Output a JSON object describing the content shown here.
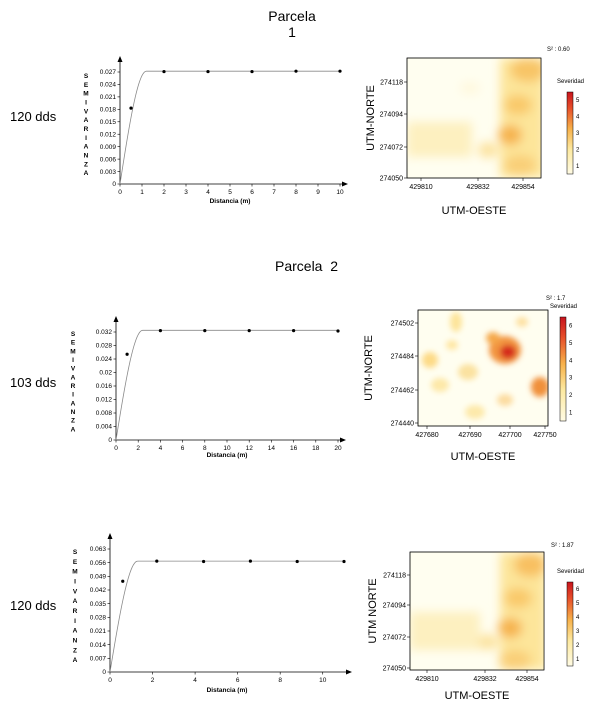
{
  "headings": {
    "parcela1_line1": "Parcela",
    "parcela1_line2": "1",
    "parcela2": "Parcela  2"
  },
  "rows": [
    {
      "dds_label": "120 dds",
      "s2_label": "S² : 0.60",
      "legend_title": "Severidad",
      "legend_ticks": [
        "1",
        "2",
        "3",
        "4",
        "5"
      ],
      "map_ylabel": "UTM-NORTE",
      "map_xlabel": "UTM-OESTE",
      "map_yticks": [
        "274118",
        "274094",
        "274072",
        "274050"
      ],
      "map_xticks": [
        "429810",
        "429832",
        "429854"
      ]
    },
    {
      "dds_label": "103 dds",
      "s2_label": "S² : 1.7",
      "legend_title": "Severidad",
      "legend_ticks": [
        "1",
        "2",
        "3",
        "4",
        "5",
        "6"
      ],
      "map_ylabel": "UTM-NORTE",
      "map_xlabel": "UTM-OESTE",
      "map_yticks": [
        "274502",
        "274484",
        "274462",
        "274440"
      ],
      "map_xticks": [
        "427680",
        "427690",
        "427700",
        "427750"
      ]
    },
    {
      "dds_label": "120 dds",
      "s2_label": "S² : 1.87",
      "legend_title": "Severidad",
      "legend_ticks": [
        "1",
        "2",
        "3",
        "4",
        "5",
        "6"
      ],
      "map_ylabel": "UTM NORTE",
      "map_xlabel": "UTM-OESTE",
      "map_yticks": [
        "274118",
        "274094",
        "274072",
        "274050"
      ],
      "map_xticks": [
        "429810",
        "429832",
        "429854"
      ]
    }
  ],
  "chart_data": [
    {
      "type": "scatter",
      "title": "",
      "xlabel": "Distancia (m)",
      "ylabel": "SEMIVARIANZA",
      "xlim": [
        0,
        10
      ],
      "ylim": [
        0,
        0.027
      ],
      "xticks": [
        0,
        1,
        2,
        3,
        4,
        5,
        6,
        7,
        8,
        9,
        10
      ],
      "yticks": [
        0,
        0.003,
        0.006,
        0.009,
        0.012,
        0.015,
        0.018,
        0.021,
        0.024,
        0.027
      ],
      "ytick_labels": [
        "0",
        "0.003",
        "0.006",
        "0.009",
        "0.012",
        "0.015",
        "0.018",
        "0.021",
        "0.024",
        "0.027"
      ],
      "points": [
        [
          0.5,
          0.0183
        ],
        [
          2,
          0.0271
        ],
        [
          4,
          0.0271
        ],
        [
          6,
          0.0271
        ],
        [
          8,
          0.0272
        ],
        [
          10,
          0.0272
        ]
      ],
      "model": {
        "type": "spherical",
        "nugget": 0,
        "sill": 0.0272,
        "range": 1.2
      },
      "grid": false
    },
    {
      "type": "scatter",
      "title": "",
      "xlabel": "Distancia (m)",
      "ylabel": "SEMIVARIANZA",
      "xlim": [
        0,
        20
      ],
      "ylim": [
        0,
        0.032
      ],
      "xticks": [
        0,
        2,
        4,
        6,
        8,
        10,
        12,
        14,
        16,
        18,
        20
      ],
      "yticks": [
        0,
        0.004,
        0.008,
        0.012,
        0.016,
        0.02,
        0.024,
        0.028,
        0.032
      ],
      "ytick_labels": [
        "0",
        "0.004",
        "0.008",
        "0.012",
        "0.016",
        "0.02",
        "0.024",
        "0.028",
        "0.032"
      ],
      "points": [
        [
          1,
          0.0254
        ],
        [
          4,
          0.0324
        ],
        [
          8,
          0.0324
        ],
        [
          12,
          0.0324
        ],
        [
          16,
          0.0324
        ],
        [
          20,
          0.0323
        ]
      ],
      "model": {
        "type": "spherical",
        "nugget": 0,
        "sill": 0.0325,
        "range": 2.4
      },
      "grid": false
    },
    {
      "type": "scatter",
      "title": "",
      "xlabel": "Distancia (m)",
      "ylabel": "SEMIVARIANZA",
      "xlim": [
        0,
        11
      ],
      "ylim": [
        0,
        0.063
      ],
      "xticks": [
        0,
        2,
        4,
        6,
        8,
        10
      ],
      "yticks": [
        0,
        0.007,
        0.014,
        0.021,
        0.028,
        0.035,
        0.042,
        0.049,
        0.056,
        0.063
      ],
      "ytick_labels": [
        "0",
        "0.007",
        "0.014",
        "0.021",
        "0.028",
        "0.035",
        "0.042",
        "0.049",
        "0.056",
        "0.063"
      ],
      "points": [
        [
          0.6,
          0.0465
        ],
        [
          2.2,
          0.0568
        ],
        [
          4.4,
          0.0566
        ],
        [
          6.6,
          0.0568
        ],
        [
          8.8,
          0.0566
        ],
        [
          11,
          0.0566
        ]
      ],
      "model": {
        "type": "spherical",
        "nugget": 0,
        "sill": 0.0568,
        "range": 1.3
      },
      "grid": false
    }
  ]
}
